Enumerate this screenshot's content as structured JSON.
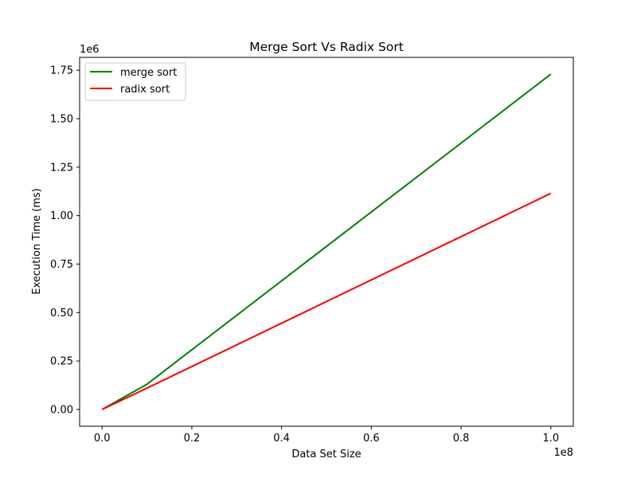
{
  "chart_data": {
    "type": "line",
    "title": "Merge Sort Vs Radix Sort",
    "xlabel": "Data Set Size",
    "ylabel": "Execution Time (ms)",
    "x_offset_label": "1e8",
    "y_offset_label": "1e6",
    "xlim": [
      -0.05,
      1.05
    ],
    "ylim": [
      -0.0865,
      1.8165
    ],
    "x_scale_factor": 100000000,
    "y_scale_factor": 1000000,
    "x_ticks": [
      0.0,
      0.2,
      0.4,
      0.6,
      0.8,
      1.0
    ],
    "x_tick_labels": [
      "0.0",
      "0.2",
      "0.4",
      "0.6",
      "0.8",
      "1.0"
    ],
    "y_ticks": [
      0.0,
      0.25,
      0.5,
      0.75,
      1.0,
      1.25,
      1.5,
      1.75
    ],
    "y_tick_labels": [
      "0.00",
      "0.25",
      "0.50",
      "0.75",
      "1.00",
      "1.25",
      "1.50",
      "1.75"
    ],
    "grid": false,
    "legend_position": "upper-left",
    "series": [
      {
        "name": "merge sort",
        "color": "#008000",
        "x": [
          0.0,
          0.1,
          1.0
        ],
        "y": [
          0.0,
          0.13,
          1.73
        ]
      },
      {
        "name": "radix sort",
        "color": "#ff0000",
        "x": [
          0.0,
          0.1,
          1.0
        ],
        "y": [
          0.0,
          0.11,
          1.115
        ]
      }
    ]
  }
}
